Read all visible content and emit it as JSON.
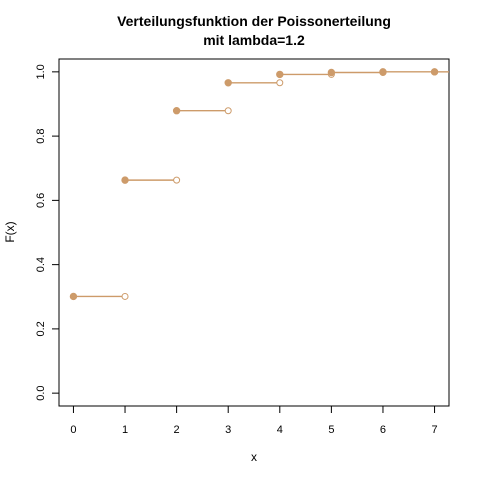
{
  "chart_data": {
    "type": "line",
    "step": true,
    "title_line1": "Verteilungsfunktion der Poissonerteilung",
    "title_line2": "mit lambda=1.2",
    "xlabel": "x",
    "ylabel": "F(x)",
    "xlim": [
      -0.28,
      7.28
    ],
    "ylim": [
      -0.04,
      1.04
    ],
    "x_ticks": [
      "0",
      "1",
      "2",
      "3",
      "4",
      "5",
      "6",
      "7"
    ],
    "y_ticks": [
      "0.0",
      "0.2",
      "0.4",
      "0.6",
      "0.8",
      "1.0"
    ],
    "x": [
      0,
      1,
      2,
      3,
      4,
      5,
      6,
      7
    ],
    "values": [
      0.301,
      0.663,
      0.879,
      0.966,
      0.992,
      0.998,
      1.0,
      1.0
    ],
    "grid": false,
    "color": "#CD9B6A"
  }
}
